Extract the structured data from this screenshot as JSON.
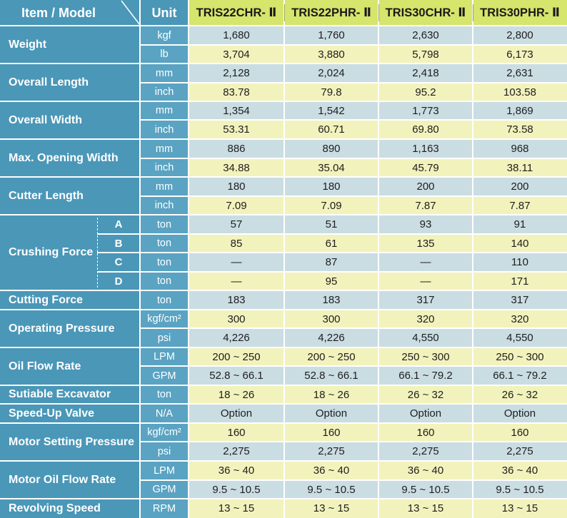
{
  "header": {
    "item_model": "Item / Model",
    "unit": "Unit",
    "models": [
      "TRIS22CHR- Ⅱ",
      "TRIS22PHR- Ⅱ",
      "TRIS30CHR- Ⅱ",
      "TRIS30PHR- Ⅱ"
    ]
  },
  "groups": [
    {
      "label": "Weight"
    },
    {
      "label": "Overall Length"
    },
    {
      "label": "Overall Width"
    },
    {
      "label": "Max. Opening Width"
    },
    {
      "label": "Cutter Length"
    },
    {
      "label": "Crushing Force"
    },
    {
      "label": "Cutting Force"
    },
    {
      "label": "Operating Pressure"
    },
    {
      "label": "Oil Flow Rate"
    },
    {
      "label": "Sutiable Excavator"
    },
    {
      "label": "Speed-Up Valve"
    },
    {
      "label": "Motor Setting Pressure"
    },
    {
      "label": "Motor Oil Flow Rate"
    },
    {
      "label": "Revolving Speed"
    }
  ],
  "rows": [
    {
      "unit": "kgf",
      "values": [
        "1,680",
        "1,760",
        "2,630",
        "2,800"
      ]
    },
    {
      "unit": "lb",
      "values": [
        "3,704",
        "3,880",
        "5,798",
        "6,173"
      ]
    },
    {
      "unit": "mm",
      "values": [
        "2,128",
        "2,024",
        "2,418",
        "2,631"
      ]
    },
    {
      "unit": "inch",
      "values": [
        "83.78",
        "79.8",
        "95.2",
        "103.58"
      ]
    },
    {
      "unit": "mm",
      "values": [
        "1,354",
        "1,542",
        "1,773",
        "1,869"
      ]
    },
    {
      "unit": "inch",
      "values": [
        "53.31",
        "60.71",
        "69.80",
        "73.58"
      ]
    },
    {
      "unit": "mm",
      "values": [
        "886",
        "890",
        "1,163",
        "968"
      ]
    },
    {
      "unit": "inch",
      "values": [
        "34.88",
        "35.04",
        "45.79",
        "38.11"
      ]
    },
    {
      "unit": "mm",
      "values": [
        "180",
        "180",
        "200",
        "200"
      ]
    },
    {
      "unit": "inch",
      "values": [
        "7.09",
        "7.09",
        "7.87",
        "7.87"
      ]
    },
    {
      "sub": "A",
      "unit": "ton",
      "values": [
        "57",
        "51",
        "93",
        "91"
      ]
    },
    {
      "sub": "B",
      "unit": "ton",
      "values": [
        "85",
        "61",
        "135",
        "140"
      ]
    },
    {
      "sub": "C",
      "unit": "ton",
      "values": [
        "—",
        "87",
        "—",
        "110"
      ]
    },
    {
      "sub": "D",
      "unit": "ton",
      "values": [
        "—",
        "95",
        "—",
        "171"
      ]
    },
    {
      "unit": "ton",
      "values": [
        "183",
        "183",
        "317",
        "317"
      ]
    },
    {
      "unit": "kgf/cm²",
      "values": [
        "300",
        "300",
        "320",
        "320"
      ]
    },
    {
      "unit": "psi",
      "values": [
        "4,226",
        "4,226",
        "4,550",
        "4,550"
      ]
    },
    {
      "unit": "LPM",
      "values": [
        "200 ~ 250",
        "200 ~ 250",
        "250 ~ 300",
        "250 ~ 300"
      ]
    },
    {
      "unit": "GPM",
      "values": [
        "52.8 ~ 66.1",
        "52.8 ~ 66.1",
        "66.1 ~ 79.2",
        "66.1 ~ 79.2"
      ]
    },
    {
      "unit": "ton",
      "values": [
        "18 ~ 26",
        "18 ~ 26",
        "26 ~ 32",
        "26 ~ 32"
      ]
    },
    {
      "unit": "N/A",
      "values": [
        "Option",
        "Option",
        "Option",
        "Option"
      ]
    },
    {
      "unit": "kgf/cm²",
      "values": [
        "160",
        "160",
        "160",
        "160"
      ]
    },
    {
      "unit": "psi",
      "values": [
        "2,275",
        "2,275",
        "2,275",
        "2,275"
      ]
    },
    {
      "unit": "LPM",
      "values": [
        "36 ~ 40",
        "36 ~ 40",
        "36 ~ 40",
        "36 ~ 40"
      ]
    },
    {
      "unit": "GPM",
      "values": [
        "9.5 ~ 10.5",
        "9.5 ~ 10.5",
        "9.5 ~ 10.5",
        "9.5 ~ 10.5"
      ]
    },
    {
      "unit": "RPM",
      "values": [
        "13 ~ 15",
        "13 ~ 15",
        "13 ~ 15",
        "13 ~ 15"
      ]
    }
  ],
  "colors": {
    "item_column": "#4a97b8",
    "unit_column": "#5aa3c2",
    "model_header": "#d6e56b",
    "row_blue": "#cadde3",
    "row_yellow": "#f2f2bc",
    "text": "#1e1e1e"
  }
}
